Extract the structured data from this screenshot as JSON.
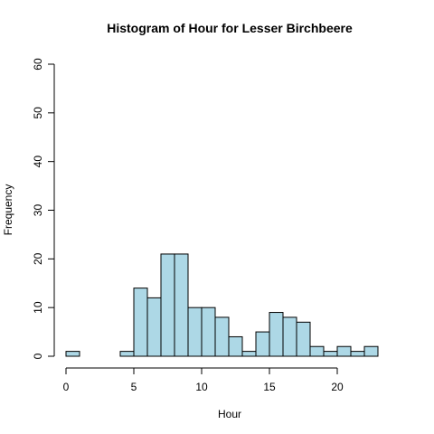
{
  "chart_data": {
    "type": "bar",
    "title": "Histogram of Hour for Lesser Birchbeere",
    "xlabel": "Hour",
    "ylabel": "Frequency",
    "bin_width": 1,
    "bins": [
      {
        "start": 0,
        "end": 1,
        "value": 1
      },
      {
        "start": 1,
        "end": 2,
        "value": 0
      },
      {
        "start": 2,
        "end": 3,
        "value": 0
      },
      {
        "start": 3,
        "end": 4,
        "value": 0
      },
      {
        "start": 4,
        "end": 5,
        "value": 1
      },
      {
        "start": 5,
        "end": 6,
        "value": 14
      },
      {
        "start": 6,
        "end": 7,
        "value": 12
      },
      {
        "start": 7,
        "end": 8,
        "value": 21
      },
      {
        "start": 8,
        "end": 9,
        "value": 21
      },
      {
        "start": 9,
        "end": 10,
        "value": 10
      },
      {
        "start": 10,
        "end": 11,
        "value": 10
      },
      {
        "start": 11,
        "end": 12,
        "value": 8
      },
      {
        "start": 12,
        "end": 13,
        "value": 4
      },
      {
        "start": 13,
        "end": 14,
        "value": 1
      },
      {
        "start": 14,
        "end": 15,
        "value": 5
      },
      {
        "start": 15,
        "end": 16,
        "value": 9
      },
      {
        "start": 16,
        "end": 17,
        "value": 8
      },
      {
        "start": 17,
        "end": 18,
        "value": 7
      },
      {
        "start": 18,
        "end": 19,
        "value": 2
      },
      {
        "start": 19,
        "end": 20,
        "value": 1
      },
      {
        "start": 20,
        "end": 21,
        "value": 2
      },
      {
        "start": 21,
        "end": 22,
        "value": 1
      },
      {
        "start": 22,
        "end": 23,
        "value": 2
      }
    ],
    "xlim": [
      0,
      23
    ],
    "ylim": [
      0,
      60
    ],
    "x_ticks": [
      0,
      5,
      10,
      15,
      20
    ],
    "y_ticks": [
      0,
      10,
      20,
      30,
      40,
      50,
      60
    ],
    "x_tick_labels": [
      "0",
      "5",
      "10",
      "15",
      "20"
    ],
    "y_tick_labels": [
      "0",
      "10",
      "20",
      "30",
      "40",
      "50",
      "60"
    ],
    "grid": false,
    "legend": "none",
    "colors": {
      "bar_fill": "#add8e6",
      "bar_stroke": "#000000",
      "axis": "#000000",
      "background": "#ffffff"
    }
  }
}
